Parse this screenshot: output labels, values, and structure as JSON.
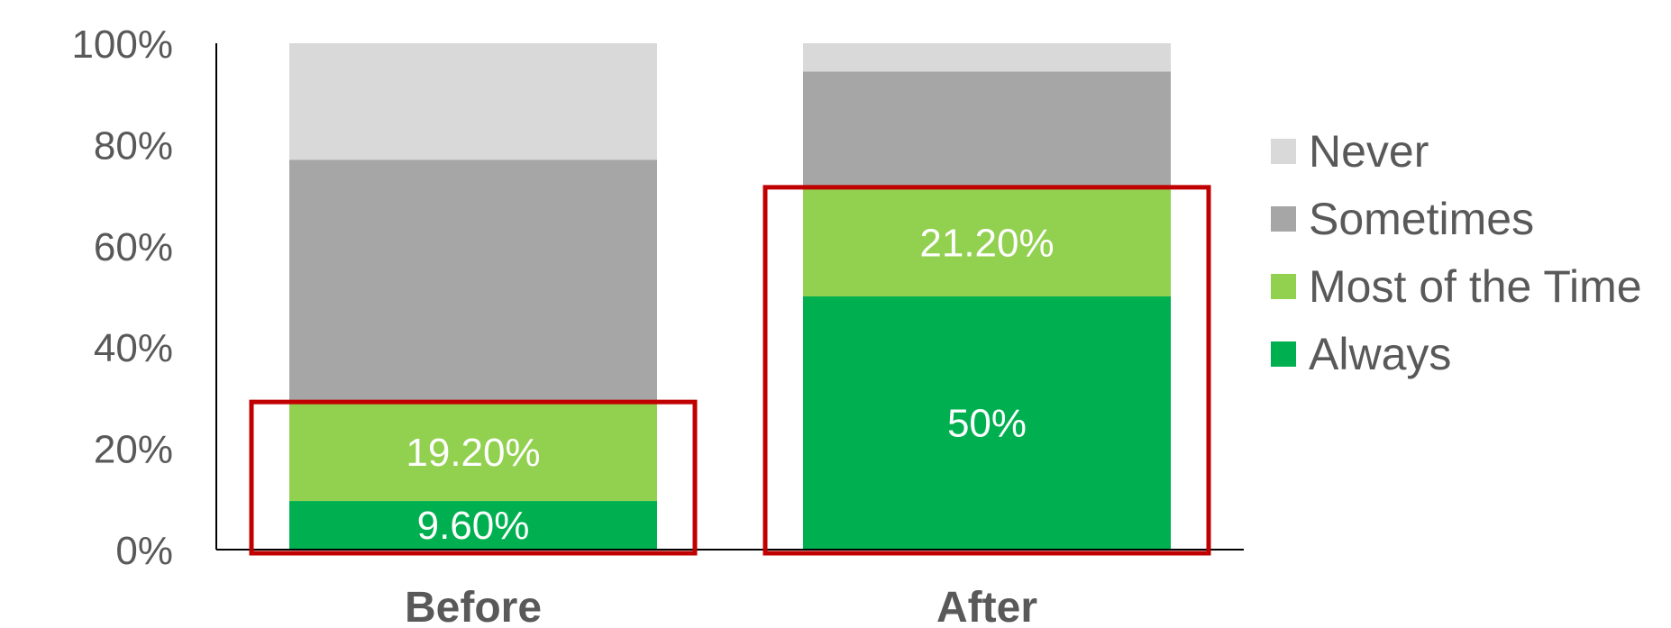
{
  "chart_data": {
    "type": "bar",
    "stacked": true,
    "categories": [
      "Before",
      "After"
    ],
    "series": [
      {
        "name": "Always",
        "color": "#00B050",
        "values": [
          9.6,
          50
        ],
        "labels": [
          "9.60%",
          "50%"
        ]
      },
      {
        "name": "Most of the Time",
        "color": "#92D050",
        "values": [
          19.2,
          21.2
        ],
        "labels": [
          "19.20%",
          "21.20%"
        ]
      },
      {
        "name": "Sometimes",
        "color": "#A6A6A6",
        "values": [
          48.2,
          23.2
        ],
        "labels": [
          "",
          ""
        ]
      },
      {
        "name": "Never",
        "color": "#D9D9D9",
        "values": [
          23.0,
          5.6
        ],
        "labels": [
          "",
          ""
        ]
      }
    ],
    "ylim": [
      0,
      100
    ],
    "yticks": [
      "0%",
      "20%",
      "40%",
      "60%",
      "80%",
      "100%"
    ],
    "legend": [
      "Never",
      "Sometimes",
      "Most of the Time",
      "Always"
    ],
    "legend_position": "right",
    "grid": false,
    "highlight_color": "#C00000",
    "highlight_boxes": [
      {
        "category": "Before",
        "covers": [
          "Always",
          "Most of the Time"
        ]
      },
      {
        "category": "After",
        "covers": [
          "Always",
          "Most of the Time"
        ]
      }
    ]
  }
}
